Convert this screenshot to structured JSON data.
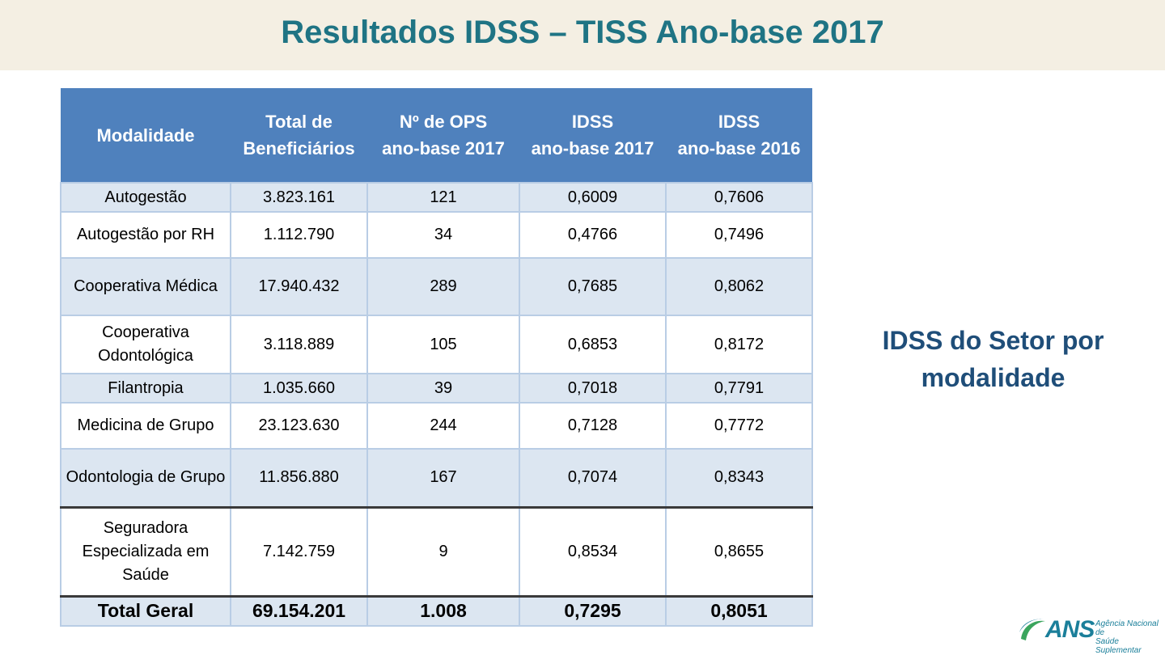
{
  "title": "Resultados IDSS – TISS Ano-base 2017",
  "table": {
    "headers": [
      {
        "line1": "Modalidade",
        "line2": ""
      },
      {
        "line1": "Total de",
        "line2": "Beneficiários"
      },
      {
        "line1": "Nº de OPS",
        "line2": "ano-base 2017"
      },
      {
        "line1": "IDSS",
        "line2": "ano-base 2017"
      },
      {
        "line1": "IDSS",
        "line2": "ano-base 2016"
      }
    ],
    "rows": [
      {
        "modalidade": "Autogestão",
        "beneficiarios": "3.823.161",
        "ops": "121",
        "idss2017": "0,6009",
        "idss2016": "0,7606"
      },
      {
        "modalidade": "Autogestão por RH",
        "beneficiarios": "1.112.790",
        "ops": "34",
        "idss2017": "0,4766",
        "idss2016": "0,7496"
      },
      {
        "modalidade": "Cooperativa Médica",
        "beneficiarios": "17.940.432",
        "ops": "289",
        "idss2017": "0,7685",
        "idss2016": "0,8062"
      },
      {
        "modalidade": "Cooperativa Odontológica",
        "beneficiarios": "3.118.889",
        "ops": "105",
        "idss2017": "0,6853",
        "idss2016": "0,8172"
      },
      {
        "modalidade": "Filantropia",
        "beneficiarios": "1.035.660",
        "ops": "39",
        "idss2017": "0,7018",
        "idss2016": "0,7791"
      },
      {
        "modalidade": "Medicina de Grupo",
        "beneficiarios": "23.123.630",
        "ops": "244",
        "idss2017": "0,7128",
        "idss2016": "0,7772"
      },
      {
        "modalidade": "Odontologia de Grupo",
        "beneficiarios": "11.856.880",
        "ops": "167",
        "idss2017": "0,7074",
        "idss2016": "0,8343"
      },
      {
        "modalidade": "Seguradora Especializada em Saúde",
        "beneficiarios": "7.142.759",
        "ops": "9",
        "idss2017": "0,8534",
        "idss2016": "0,8655"
      }
    ],
    "total": {
      "modalidade": "Total Geral",
      "beneficiarios": "69.154.201",
      "ops": "1.008",
      "idss2017": "0,7295",
      "idss2016": "0,8051"
    }
  },
  "side_label": "IDSS do Setor por modalidade",
  "logo": {
    "mark": "ANS",
    "subtitle_line1": "Agência Nacional de",
    "subtitle_line2": "Saúde Suplementar",
    "colors": {
      "teal": "#1b7f9a",
      "green": "#3aa55d"
    }
  },
  "colors": {
    "header_bg": "#4f81bd",
    "band_bg": "#dce6f1",
    "title_color": "#1f7484",
    "title_bar_bg": "#f4efe3"
  }
}
